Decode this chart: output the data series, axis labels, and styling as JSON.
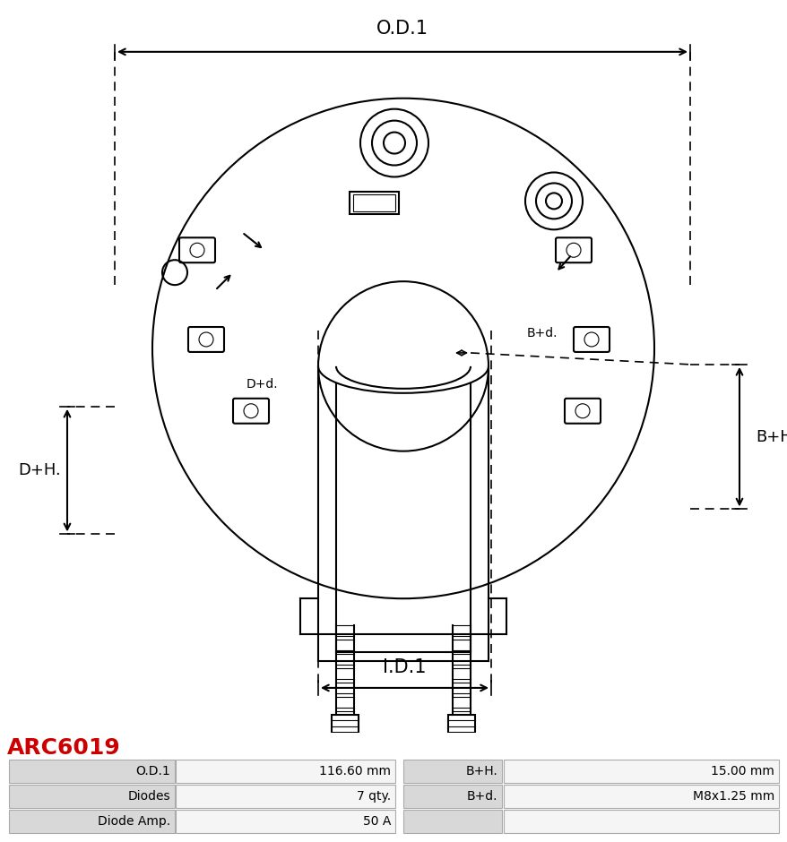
{
  "title": "ARC6019",
  "title_color": "#cc0000",
  "od1_label": "O.D.1",
  "id1_label": "I.D.1",
  "bh_label": "B+H.",
  "dh_label": "D+H.",
  "bd_label": "B+d.",
  "dd_label": "D+d.",
  "table_data": [
    [
      "O.D.1",
      "116.60 mm",
      "B+H.",
      "15.00 mm"
    ],
    [
      "Diodes",
      "7 qty.",
      "B+d.",
      "M8x1.25 mm"
    ],
    [
      "Diode Amp.",
      "50 A",
      "",
      ""
    ]
  ],
  "bg_color": "#ffffff",
  "line_color": "#000000",
  "dashed_color": "#000000",
  "table_header_bg": "#d0d0d0",
  "table_cell_bg": "#f0f0f0",
  "table_border": "#aaaaaa"
}
